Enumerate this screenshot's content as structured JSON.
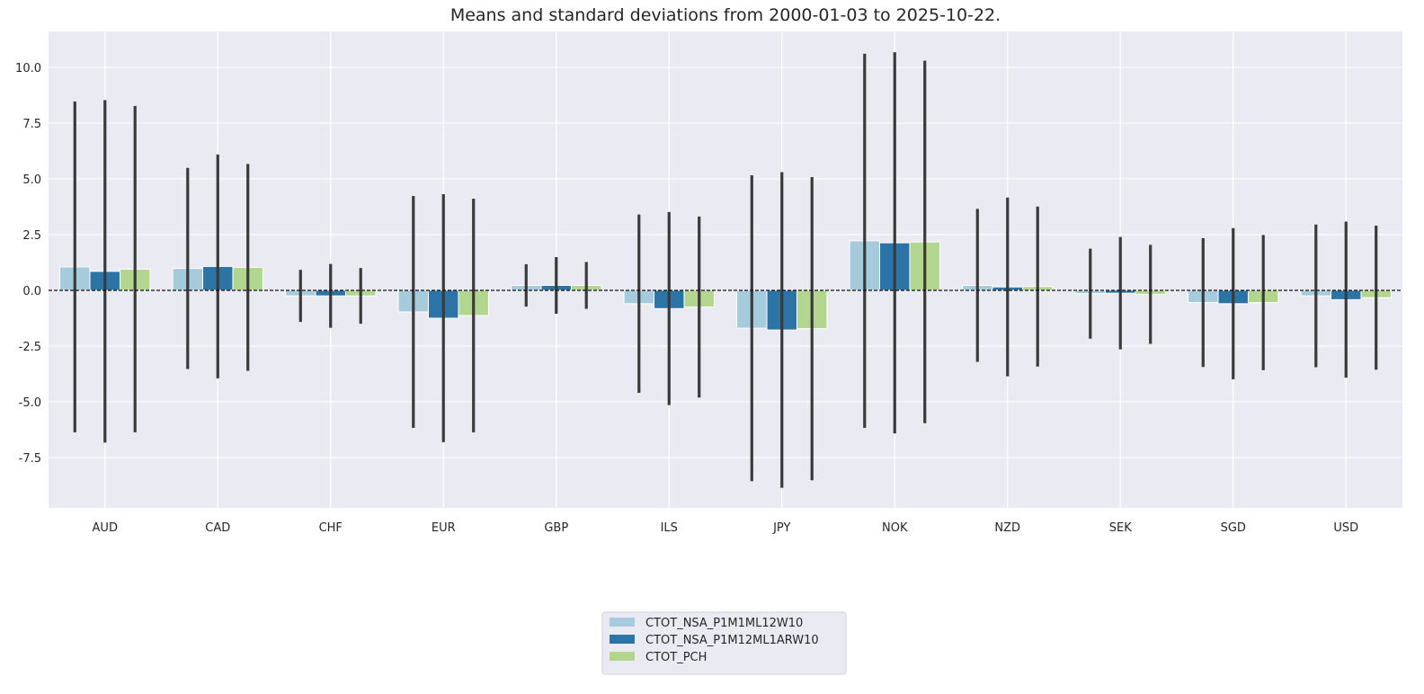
{
  "chart_data": {
    "type": "bar",
    "title": "Means and standard deviations from 2000-01-03 to 2025-10-22.",
    "xlabel": "",
    "ylabel": "",
    "ylim": [
      -9.76,
      11.61
    ],
    "yticks": [
      -7.5,
      -5.0,
      -2.5,
      0.0,
      2.5,
      5.0,
      7.5,
      10.0
    ],
    "grid": true,
    "zero_line": true,
    "legend_position": "bottom-center",
    "categories": [
      "AUD",
      "CAD",
      "CHF",
      "EUR",
      "GBP",
      "ILS",
      "JPY",
      "NOK",
      "NZD",
      "SEK",
      "SGD",
      "USD"
    ],
    "series": [
      {
        "name": "CTOT_NSA_P1M1ML12W10",
        "color": "#a6cbdc",
        "values": [
          1.05,
          0.98,
          -0.25,
          -0.97,
          0.22,
          -0.6,
          -1.7,
          2.22,
          0.22,
          -0.15,
          -0.55,
          -0.25
        ],
        "std": [
          7.42,
          4.51,
          1.17,
          5.2,
          0.95,
          4.0,
          6.86,
          8.39,
          3.43,
          2.02,
          2.89,
          3.2
        ]
      },
      {
        "name": "CTOT_NSA_P1M12ML1ARW10",
        "color": "#2c73a6",
        "values": [
          0.85,
          1.07,
          -0.25,
          -1.25,
          0.22,
          -0.82,
          -1.78,
          2.13,
          0.15,
          -0.13,
          -0.6,
          -0.42
        ],
        "std": [
          7.68,
          5.02,
          1.43,
          5.56,
          1.27,
          4.33,
          7.08,
          8.55,
          4.01,
          2.52,
          3.39,
          3.5
        ]
      },
      {
        "name": "CTOT_PCH",
        "color": "#b2d68f",
        "values": [
          0.95,
          1.03,
          -0.25,
          -1.13,
          0.22,
          -0.75,
          -1.72,
          2.17,
          0.17,
          -0.18,
          -0.55,
          -0.33
        ],
        "std": [
          7.32,
          4.64,
          1.25,
          5.24,
          1.05,
          4.06,
          6.8,
          8.13,
          3.59,
          2.22,
          3.03,
          3.23
        ]
      }
    ]
  }
}
